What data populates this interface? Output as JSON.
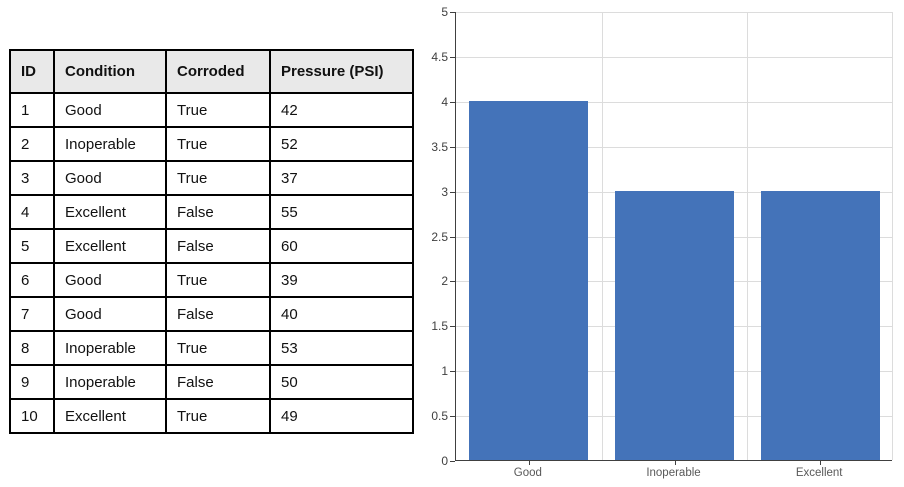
{
  "table": {
    "headers": [
      "ID",
      "Condition",
      "Corroded",
      "Pressure (PSI)"
    ],
    "rows": [
      [
        "1",
        "Good",
        "True",
        "42"
      ],
      [
        "2",
        "Inoperable",
        "True",
        "52"
      ],
      [
        "3",
        "Good",
        "True",
        "37"
      ],
      [
        "4",
        "Excellent",
        "False",
        "55"
      ],
      [
        "5",
        "Excellent",
        "False",
        "60"
      ],
      [
        "6",
        "Good",
        "True",
        "39"
      ],
      [
        "7",
        "Good",
        "False",
        "40"
      ],
      [
        "8",
        "Inoperable",
        "True",
        "53"
      ],
      [
        "9",
        "Inoperable",
        "False",
        "50"
      ],
      [
        "10",
        "Excellent",
        "True",
        "49"
      ]
    ]
  },
  "chart_data": {
    "type": "bar",
    "categories": [
      "Good",
      "Inoperable",
      "Excellent"
    ],
    "values": [
      4,
      3,
      3
    ],
    "title": "",
    "xlabel": "",
    "ylabel": "",
    "ylim": [
      0,
      5
    ],
    "ytick_step": 0.5,
    "grid": true,
    "legend_position": "none",
    "bar_color": "#4473b9",
    "gridline_color": "#dcdcdc",
    "axis_color": "#404040",
    "tick_label_color": "#404040",
    "category_label_color": "#595959"
  }
}
